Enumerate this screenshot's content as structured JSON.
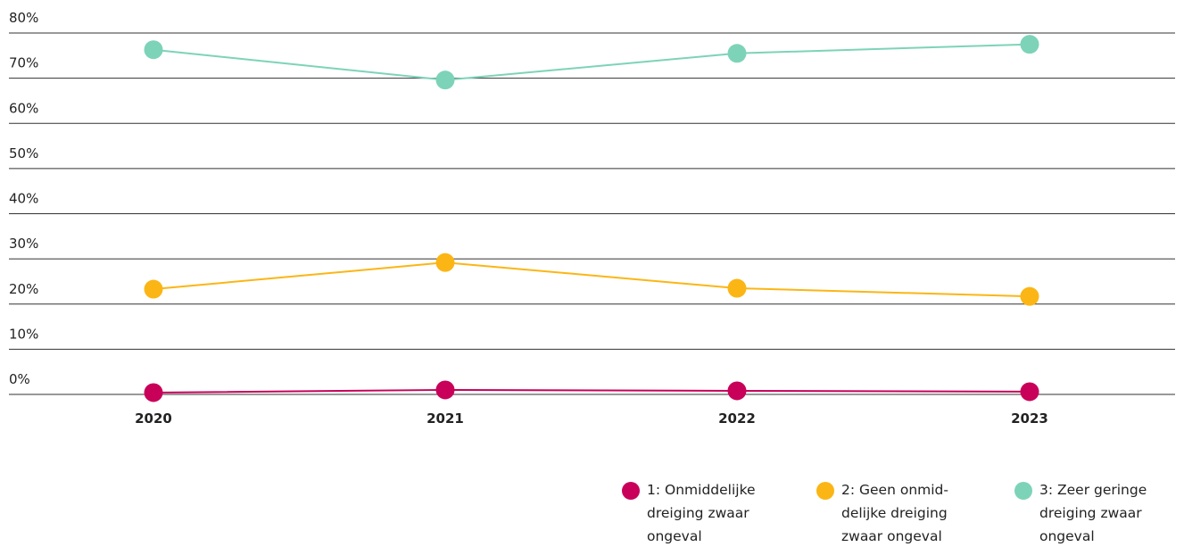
{
  "chart_data": {
    "type": "line",
    "x": [
      "2020",
      "2021",
      "2022",
      "2023"
    ],
    "series": [
      {
        "name": "1: Onmiddelijke dreiging zwaar ongeval",
        "color": "#c8005a",
        "values": [
          0.4,
          1.0,
          0.8,
          0.6
        ]
      },
      {
        "name": "2: Geen onmid­delijke dreiging zwaar ongeval",
        "color": "#fbb615",
        "values": [
          23.3,
          29.2,
          23.5,
          21.7
        ]
      },
      {
        "name": "3: Zeer geringe dreiging zwaar ongeval",
        "color": "#7dd3b8",
        "values": [
          76.3,
          69.6,
          75.5,
          77.5
        ]
      }
    ],
    "ylim": [
      0,
      80
    ],
    "yticks": [
      {
        "value": 0,
        "label": "0%"
      },
      {
        "value": 10,
        "label": "10%"
      },
      {
        "value": 20,
        "label": "20%"
      },
      {
        "value": 30,
        "label": "30%"
      },
      {
        "value": 40,
        "label": "40%"
      },
      {
        "value": 50,
        "label": "50%"
      },
      {
        "value": 60,
        "label": "60%"
      },
      {
        "value": 70,
        "label": "70%"
      },
      {
        "value": 80,
        "label": "80%"
      }
    ],
    "grid": true,
    "legend": "bottom-right"
  }
}
